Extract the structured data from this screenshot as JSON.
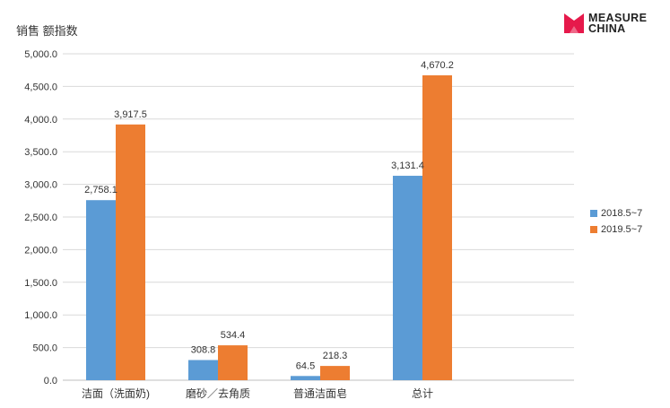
{
  "chart_data": {
    "type": "bar",
    "title": "",
    "ylabel": "销售 额指数",
    "xlabel": "",
    "ylim": [
      0,
      5000
    ],
    "ytick_step": 500,
    "ytick_labels": [
      "0.0",
      "500.0",
      "1,000.0",
      "1,500.0",
      "2,000.0",
      "2,500.0",
      "3,000.0",
      "3,500.0",
      "4,000.0",
      "4,500.0",
      "5,000.0"
    ],
    "categories": [
      "洁面（洗面奶)",
      "磨砂／去角质",
      "普通洁面皂",
      "总计"
    ],
    "series": [
      {
        "name": "2018.5~7",
        "color": "#5b9bd5",
        "values": [
          2758.1,
          308.8,
          64.5,
          3131.4
        ],
        "labels": [
          "2,758.1",
          "308.8",
          "64.5",
          "3,131.4"
        ]
      },
      {
        "name": "2019.5~7",
        "color": "#ed7d31",
        "values": [
          3917.5,
          534.4,
          218.3,
          4670.2
        ],
        "labels": [
          "3,917.5",
          "534.4",
          "218.3",
          "4,670.2"
        ]
      }
    ],
    "grid": true,
    "legend_position": "right"
  },
  "logo": {
    "line1": "MEASURE",
    "line2": "CHINA",
    "color": "#e6194b"
  }
}
